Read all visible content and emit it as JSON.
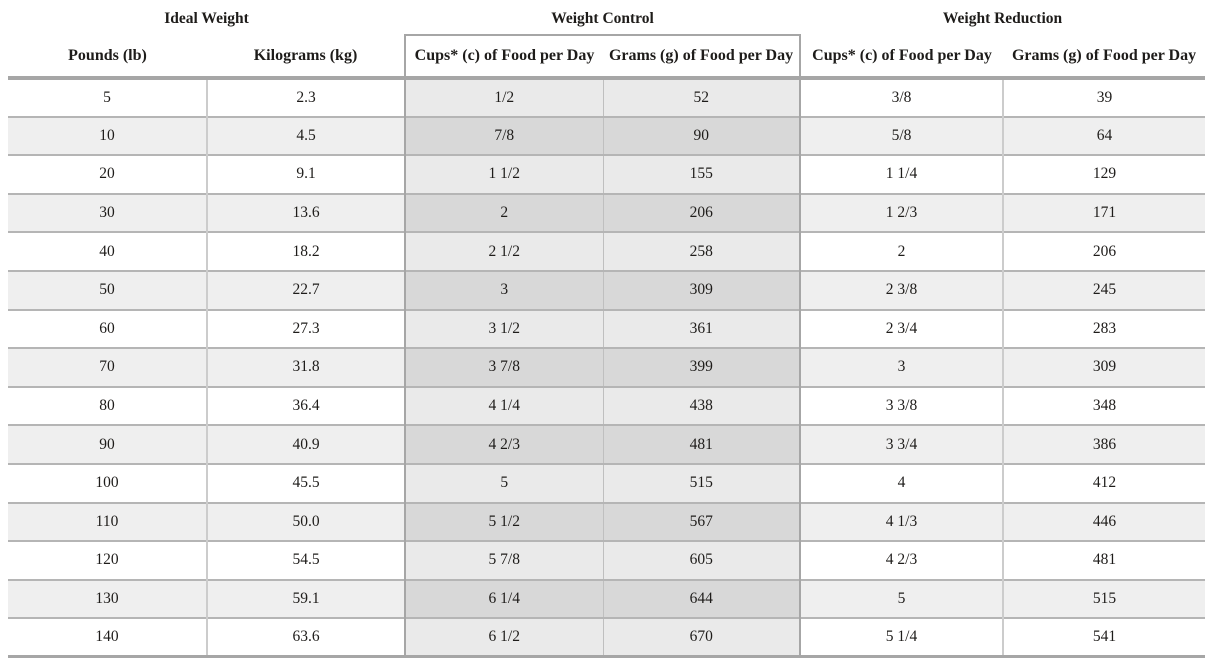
{
  "table": {
    "groups": [
      {
        "label": "Ideal Weight"
      },
      {
        "label": "Weight Control"
      },
      {
        "label": "Weight Reduction"
      }
    ],
    "columns": [
      "Pounds (lb)",
      "Kilograms (kg)",
      "Cups* (c) of Food per Day",
      "Grams (g) of Food per Day",
      "Cups* (c) of Food per Day",
      "Grams (g) of Food per Day"
    ],
    "col_keys": [
      "pounds",
      "kilograms",
      "control-cups",
      "control-grams",
      "reduction-cups",
      "reduction-grams"
    ],
    "rows": [
      [
        "5",
        "2.3",
        "1/2",
        "52",
        "3/8",
        "39"
      ],
      [
        "10",
        "4.5",
        "7/8",
        "90",
        "5/8",
        "64"
      ],
      [
        "20",
        "9.1",
        "1 1/2",
        "155",
        "1 1/4",
        "129"
      ],
      [
        "30",
        "13.6",
        "2",
        "206",
        "1 2/3",
        "171"
      ],
      [
        "40",
        "18.2",
        "2 1/2",
        "258",
        "2",
        "206"
      ],
      [
        "50",
        "22.7",
        "3",
        "309",
        "2 3/8",
        "245"
      ],
      [
        "60",
        "27.3",
        "3 1/2",
        "361",
        "2 3/4",
        "283"
      ],
      [
        "70",
        "31.8",
        "3 7/8",
        "399",
        "3",
        "309"
      ],
      [
        "80",
        "36.4",
        "4 1/4",
        "438",
        "3 3/8",
        "348"
      ],
      [
        "90",
        "40.9",
        "4 2/3",
        "481",
        "3 3/4",
        "386"
      ],
      [
        "100",
        "45.5",
        "5",
        "515",
        "4",
        "412"
      ],
      [
        "110",
        "50.0",
        "5 1/2",
        "567",
        "4 1/3",
        "446"
      ],
      [
        "120",
        "54.5",
        "5 7/8",
        "605",
        "4 2/3",
        "481"
      ],
      [
        "130",
        "59.1",
        "6 1/4",
        "644",
        "5",
        "515"
      ],
      [
        "140",
        "63.6",
        "6 1/2",
        "670",
        "5 1/4",
        "541"
      ]
    ]
  },
  "colors": {
    "rule-gray": "#a6a6a6",
    "row-line": "#b5b5b5",
    "col-line": "#cccccc",
    "box-col-line": "#bfbfbf",
    "zebra-light": "#efefef",
    "box-light": "#eaeaea",
    "box-dark": "#d8d8d8",
    "text": "#1e1c1a"
  }
}
